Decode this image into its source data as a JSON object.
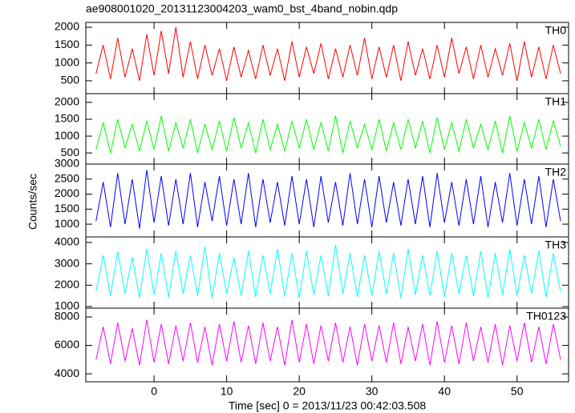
{
  "chart_data": {
    "type": "line",
    "title": "ae908001020_20131123004203_wam0_bst_4band_nobin.qdp",
    "xlabel": "Time [sec] 0 = 2013/11/23 00:42:03.508",
    "ylabel": "Counts/sec",
    "xlim": [
      -9.4,
      57.1
    ],
    "xticks": [
      0,
      10,
      20,
      30,
      40,
      50
    ],
    "x": [
      -8,
      -7,
      -6,
      -5,
      -4,
      -3,
      -2,
      -1,
      0,
      1,
      2,
      3,
      4,
      5,
      6,
      7,
      8,
      9,
      10,
      11,
      12,
      13,
      14,
      15,
      16,
      17,
      18,
      19,
      20,
      21,
      22,
      23,
      24,
      25,
      26,
      27,
      28,
      29,
      30,
      31,
      32,
      33,
      34,
      35,
      36,
      37,
      38,
      39,
      40,
      41,
      42,
      43,
      44,
      45,
      46,
      47,
      48,
      49,
      50,
      51,
      52,
      53,
      54,
      55,
      56
    ],
    "series": [
      {
        "name": "TH0",
        "color": "#ff0000",
        "ylim": [
          140,
          2135
        ],
        "yticks": [
          500,
          1000,
          1500,
          2000
        ],
        "values": [
          700,
          1500,
          550,
          1700,
          600,
          1400,
          500,
          1800,
          650,
          1900,
          700,
          2000,
          600,
          1600,
          550,
          1500,
          650,
          1400,
          500,
          1450,
          600,
          1350,
          550,
          1500,
          650,
          1400,
          500,
          1600,
          600,
          1450,
          700,
          1550,
          550,
          1400,
          600,
          1500,
          650,
          1700,
          550,
          1450,
          600,
          1500,
          500,
          1600,
          650,
          1400,
          550,
          1500,
          600,
          1700,
          700,
          1450,
          550,
          1500,
          600,
          1400,
          650,
          1550,
          500,
          1600,
          600,
          1450,
          550,
          1500,
          700
        ]
      },
      {
        "name": "TH1",
        "color": "#00ff00",
        "ylim": [
          170,
          2260
        ],
        "yticks": [
          500,
          1000,
          1500,
          2000
        ],
        "values": [
          600,
          1400,
          500,
          1500,
          650,
          1350,
          550,
          1450,
          600,
          1600,
          550,
          1400,
          650,
          1500,
          500,
          1350,
          600,
          1450,
          550,
          1550,
          650,
          1400,
          500,
          1500,
          600,
          1350,
          550,
          1450,
          650,
          1500,
          600,
          1400,
          550,
          1600,
          500,
          1450,
          650,
          1350,
          600,
          1500,
          550,
          1400,
          600,
          1500,
          650,
          1450,
          500,
          1550,
          600,
          1400,
          550,
          1500,
          650,
          1350,
          600,
          1450,
          500,
          1600,
          550,
          1400,
          650,
          1500,
          600,
          1450,
          700
        ]
      },
      {
        "name": "TH2",
        "color": "#0000ff",
        "ylim": [
          575,
          3000
        ],
        "yticks": [
          1000,
          1500,
          2000,
          2500,
          3000
        ],
        "values": [
          1100,
          2400,
          900,
          2700,
          1000,
          2500,
          850,
          2800,
          1050,
          2600,
          950,
          2500,
          1000,
          2700,
          900,
          2400,
          1100,
          2600,
          950,
          2500,
          1000,
          2700,
          900,
          2500,
          1050,
          2400,
          950,
          2600,
          1000,
          2500,
          900,
          2600,
          1050,
          2400,
          950,
          2700,
          1000,
          2500,
          900,
          2600,
          1050,
          2400,
          950,
          2500,
          1000,
          2600,
          900,
          2700,
          1050,
          2400,
          950,
          2500,
          1000,
          2600,
          900,
          2400,
          1050,
          2700,
          950,
          2500,
          1000,
          2600,
          900,
          2500,
          1100
        ]
      },
      {
        "name": "TH3",
        "color": "#00ffff",
        "ylim": [
          925,
          4260
        ],
        "yticks": [
          1000,
          2000,
          3000,
          4000
        ],
        "values": [
          1700,
          3400,
          1500,
          3600,
          1600,
          3300,
          1400,
          3700,
          1550,
          3500,
          1450,
          3600,
          1600,
          3400,
          1500,
          3800,
          1400,
          3500,
          1600,
          3300,
          1500,
          3600,
          1450,
          3400,
          1600,
          3700,
          1500,
          3500,
          1400,
          3600,
          1550,
          3400,
          1500,
          3900,
          1600,
          3500,
          1450,
          3400,
          1500,
          3600,
          1600,
          3500,
          1400,
          3700,
          1550,
          3400,
          1500,
          3600,
          1450,
          3500,
          1600,
          3400,
          1500,
          3600,
          1400,
          3500,
          1550,
          3700,
          1500,
          3400,
          1600,
          3600,
          1450,
          3500,
          1700
        ]
      },
      {
        "name": "TH0123",
        "color": "#ff00ff",
        "ylim": [
          3440,
          8620
        ],
        "yticks": [
          4000,
          6000,
          8000
        ],
        "values": [
          5000,
          7300,
          4700,
          7600,
          4900,
          7200,
          4600,
          7800,
          4800,
          7500,
          4700,
          7400,
          4900,
          7600,
          4800,
          7300,
          4600,
          7500,
          4900,
          7700,
          4800,
          7400,
          4700,
          7600,
          4900,
          7300,
          4600,
          7800,
          4800,
          7500,
          4700,
          7400,
          4900,
          7600,
          4800,
          7300,
          4600,
          7500,
          4900,
          7400,
          4800,
          7600,
          4700,
          7300,
          4900,
          7500,
          4600,
          7700,
          4800,
          7400,
          4700,
          7600,
          4900,
          7300,
          4800,
          7500,
          4600,
          7400,
          4900,
          7600,
          4800,
          7300,
          4700,
          7500,
          5000
        ]
      }
    ]
  }
}
